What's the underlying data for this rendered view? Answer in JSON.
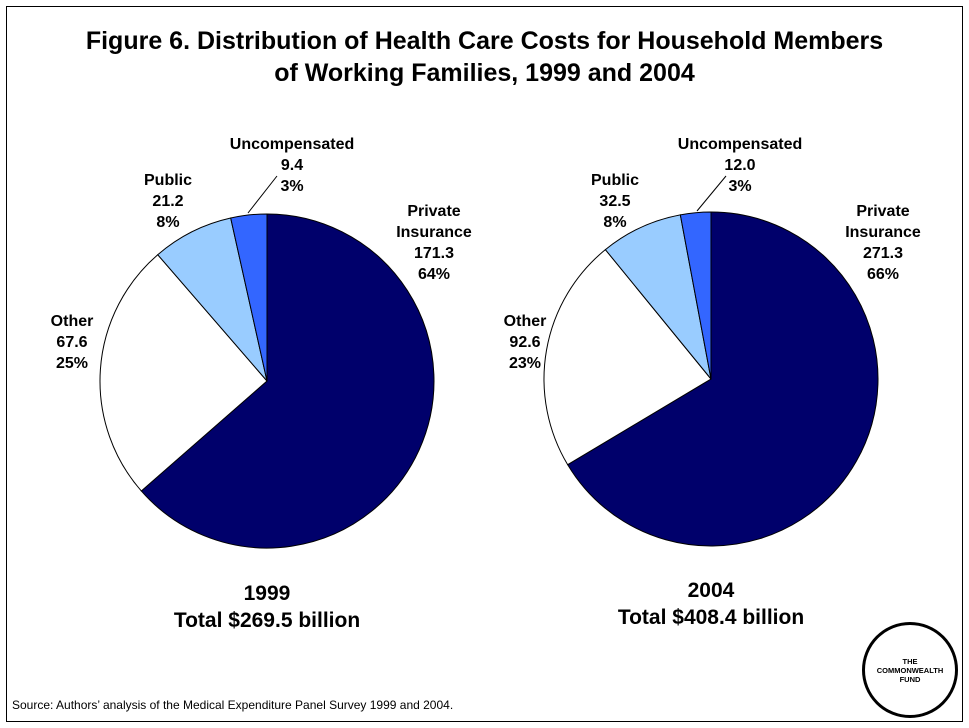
{
  "title_line1": "Figure 6. Distribution of Health Care Costs for Household Members",
  "title_line2": "of Working Families, 1999 and 2004",
  "source": "Source: Authors’ analysis of the Medical Expenditure Panel Survey 1999 and 2004.",
  "logo_lines": [
    "THE",
    "COMMONWEALTH",
    "FUND"
  ],
  "colors": {
    "private": "#00006b",
    "other": "#ffffff",
    "public": "#99ccff",
    "uncompensated": "#3366ff"
  },
  "chart_data": [
    {
      "type": "pie",
      "year": "1999",
      "total": "Total $269.5 billion",
      "slices": [
        {
          "label": [
            "Private",
            "Insurance"
          ],
          "value": 171.3,
          "value_label": "171.3",
          "percent_label": "64%"
        },
        {
          "label": [
            "Other"
          ],
          "value": 67.6,
          "value_label": "67.6",
          "percent_label": "25%"
        },
        {
          "label": [
            "Public"
          ],
          "value": 21.2,
          "value_label": "21.2",
          "percent_label": "8%"
        },
        {
          "label": [
            "Uncompensated"
          ],
          "value": 9.4,
          "value_label": "9.4",
          "percent_label": "3%"
        }
      ]
    },
    {
      "type": "pie",
      "year": "2004",
      "total": "Total $408.4 billion",
      "slices": [
        {
          "label": [
            "Private",
            "Insurance"
          ],
          "value": 271.3,
          "value_label": "271.3",
          "percent_label": "66%"
        },
        {
          "label": [
            "Other"
          ],
          "value": 92.6,
          "value_label": "92.6",
          "percent_label": "23%"
        },
        {
          "label": [
            "Public"
          ],
          "value": 32.5,
          "value_label": "32.5",
          "percent_label": "8%"
        },
        {
          "label": [
            "Uncompensated"
          ],
          "value": 12.0,
          "value_label": "12.0",
          "percent_label": "3%"
        }
      ]
    }
  ]
}
